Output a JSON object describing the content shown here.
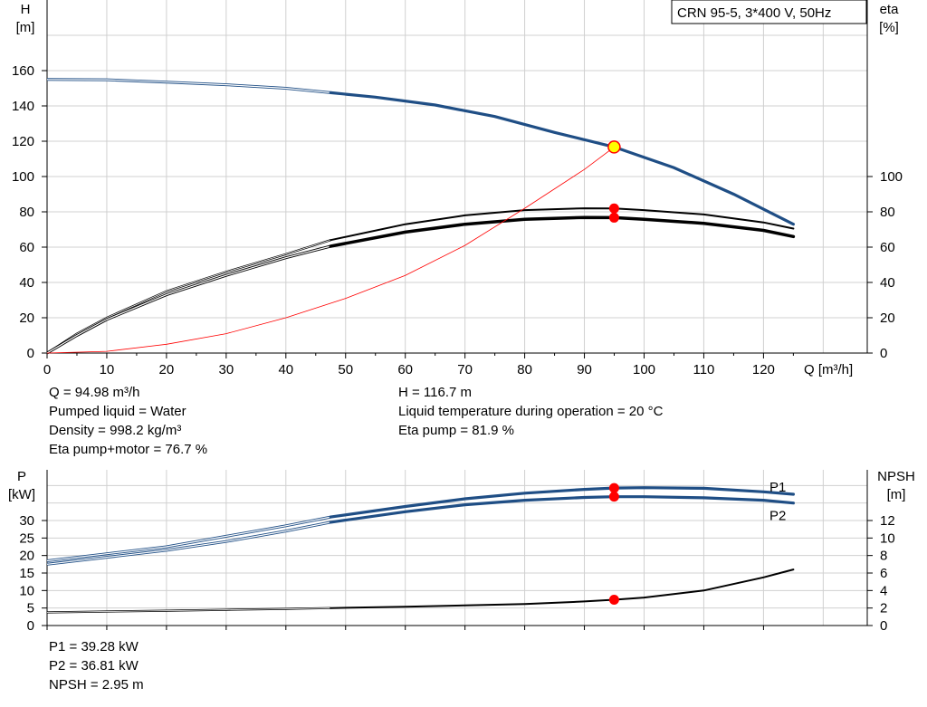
{
  "colors": {
    "primary": "#1f4e85",
    "op_point": "#ff0000",
    "hydraulic_curve": "#ff0000",
    "op_marker_fill": "#ffff00",
    "grid": "#d0d0d0"
  },
  "chart_data": [
    {
      "type": "line",
      "id": "performance",
      "title": "CRN 95-5, 3*400 V, 50Hz",
      "xlabel": "Q [m³/h]",
      "ylabel_left": "H [m]",
      "ylabel_right": "eta [%]",
      "xlim": [
        0,
        125
      ],
      "ylim_left": [
        0,
        160
      ],
      "ylim_right": [
        0,
        100
      ],
      "x_ticks": [
        0,
        10,
        20,
        30,
        40,
        50,
        60,
        70,
        80,
        90,
        100,
        110,
        120
      ],
      "y_ticks_left": [
        0,
        20,
        40,
        60,
        80,
        100,
        120,
        140,
        160
      ],
      "y_ticks_right": [
        0,
        20,
        40,
        60,
        80,
        100
      ],
      "grid": true,
      "series": [
        {
          "axis": "left",
          "style": "primary",
          "points": [
            [
              0,
              155
            ],
            [
              10,
              154.8
            ],
            [
              20,
              153.5
            ],
            [
              30,
              152
            ],
            [
              40,
              150
            ],
            [
              47.5,
              147.5
            ],
            [
              55,
              145
            ],
            [
              65,
              140.5
            ],
            [
              75,
              134
            ],
            [
              85,
              125
            ],
            [
              95,
              116.7
            ],
            [
              105,
              105
            ],
            [
              115,
              90
            ],
            [
              125,
              73
            ]
          ]
        },
        {
          "axis": "right",
          "style": "black",
          "points": [
            [
              0,
              0
            ],
            [
              5,
              11
            ],
            [
              10,
              20
            ],
            [
              20,
              35
            ],
            [
              30,
              46
            ],
            [
              40,
              56
            ],
            [
              47.5,
              64
            ],
            [
              60,
              73
            ],
            [
              70,
              78
            ],
            [
              80,
              81
            ],
            [
              90,
              82
            ],
            [
              95,
              81.9
            ],
            [
              100,
              81
            ],
            [
              110,
              78.5
            ],
            [
              120,
              74
            ],
            [
              125,
              70.5
            ]
          ]
        },
        {
          "axis": "right",
          "style": "black-thick",
          "points": [
            [
              0,
              0
            ],
            [
              5,
              10
            ],
            [
              10,
              19
            ],
            [
              20,
              33
            ],
            [
              30,
              44
            ],
            [
              40,
              54
            ],
            [
              47.5,
              60.5
            ],
            [
              60,
              68.5
            ],
            [
              70,
              73
            ],
            [
              80,
              75.8
            ],
            [
              90,
              76.8
            ],
            [
              95,
              76.7
            ],
            [
              100,
              75.8
            ],
            [
              110,
              73.5
            ],
            [
              120,
              69.5
            ],
            [
              125,
              66
            ]
          ]
        },
        {
          "axis": "left",
          "style": "red-thin",
          "points": [
            [
              0,
              0
            ],
            [
              10,
              1
            ],
            [
              20,
              5
            ],
            [
              30,
              11
            ],
            [
              40,
              20
            ],
            [
              50,
              31
            ],
            [
              60,
              44
            ],
            [
              70,
              61
            ],
            [
              80,
              82
            ],
            [
              90,
              104
            ],
            [
              95,
              116.7
            ]
          ]
        }
      ],
      "operating_point": {
        "x": 94.98,
        "H": 116.7,
        "eta_pump": 81.9,
        "eta_total": 76.7
      }
    },
    {
      "type": "line",
      "id": "power_npsh",
      "ylabel_left": "P [kW]",
      "ylabel_right": "NPSH [m]",
      "xlim": [
        0,
        125
      ],
      "ylim_left": [
        0,
        37.5
      ],
      "ylim_right": [
        0,
        16
      ],
      "y_ticks_left": [
        0,
        5,
        10,
        15,
        20,
        25,
        30
      ],
      "y_ticks_right": [
        0,
        2,
        4,
        6,
        8,
        10,
        12
      ],
      "grid": true,
      "series": [
        {
          "name": "P1",
          "axis": "left",
          "style": "primary",
          "points": [
            [
              0,
              18.5
            ],
            [
              10,
              20.5
            ],
            [
              20,
              22.5
            ],
            [
              30,
              25.5
            ],
            [
              40,
              28.5
            ],
            [
              47.5,
              31
            ],
            [
              60,
              34
            ],
            [
              70,
              36.2
            ],
            [
              80,
              37.8
            ],
            [
              90,
              38.9
            ],
            [
              95,
              39.28
            ],
            [
              100,
              39.4
            ],
            [
              110,
              39.2
            ],
            [
              120,
              38.2
            ],
            [
              125,
              37.5
            ]
          ]
        },
        {
          "name": "P2",
          "axis": "left",
          "style": "primary",
          "points": [
            [
              0,
              17.5
            ],
            [
              10,
              19.5
            ],
            [
              20,
              21.5
            ],
            [
              30,
              24
            ],
            [
              40,
              27
            ],
            [
              47.5,
              29.5
            ],
            [
              60,
              32.5
            ],
            [
              70,
              34.5
            ],
            [
              80,
              35.8
            ],
            [
              90,
              36.6
            ],
            [
              95,
              36.81
            ],
            [
              100,
              36.8
            ],
            [
              110,
              36.5
            ],
            [
              120,
              35.8
            ],
            [
              125,
              35
            ]
          ]
        },
        {
          "name": "NPSH",
          "axis": "right",
          "style": "black",
          "points": [
            [
              0,
              1.5
            ],
            [
              10,
              1.6
            ],
            [
              20,
              1.7
            ],
            [
              30,
              1.8
            ],
            [
              40,
              1.9
            ],
            [
              47.5,
              2.0
            ],
            [
              60,
              2.15
            ],
            [
              70,
              2.3
            ],
            [
              80,
              2.45
            ],
            [
              90,
              2.75
            ],
            [
              95,
              2.95
            ],
            [
              100,
              3.2
            ],
            [
              110,
              4.0
            ],
            [
              120,
              5.5
            ],
            [
              125,
              6.4
            ]
          ]
        }
      ],
      "operating_point": {
        "x": 94.98,
        "P1": 39.28,
        "P2": 36.81,
        "NPSH": 2.95
      }
    }
  ],
  "info_top_left": [
    "Q = 94.98 m³/h",
    "Pumped liquid = Water",
    "Density = 998.2 kg/m³",
    "Eta pump+motor = 76.7 %"
  ],
  "info_top_right": [
    "H = 116.7 m",
    "Liquid temperature during operation = 20 °C",
    "Eta pump = 81.9 %"
  ],
  "info_bottom": [
    "P1 = 39.28 kW",
    "P2 = 36.81 kW",
    "NPSH = 2.95 m"
  ]
}
